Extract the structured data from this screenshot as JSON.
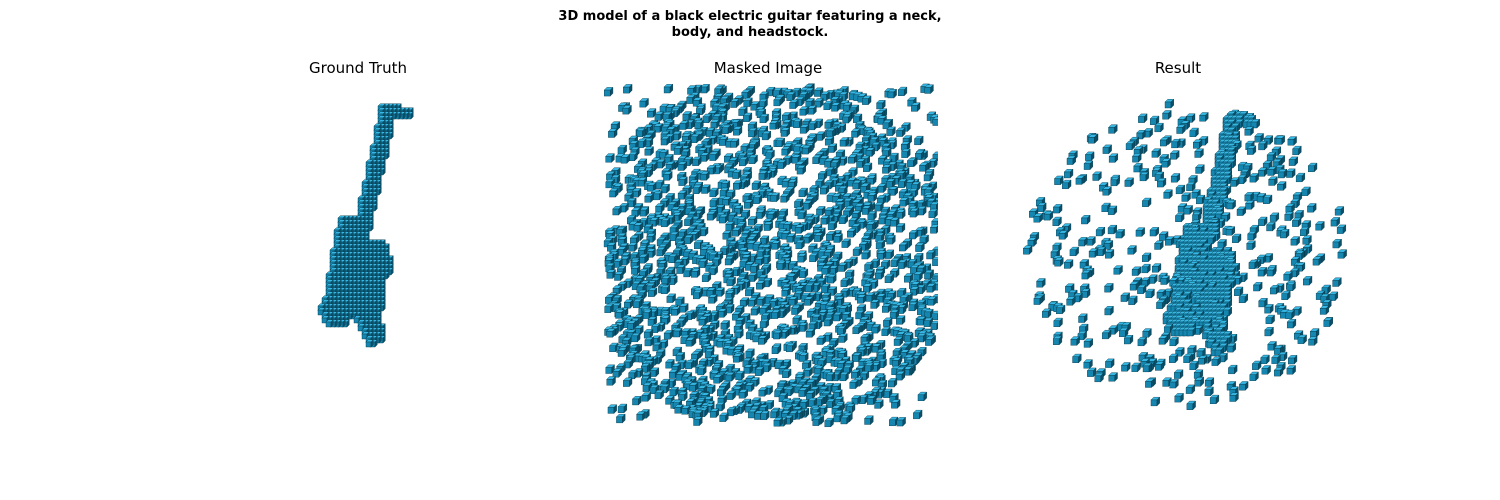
{
  "figure": {
    "title_line1": "3D model of a black electric guitar featuring a neck,",
    "title_line2": "body, and headstock."
  },
  "panels": [
    {
      "title": "Ground Truth"
    },
    {
      "title": "Masked Image"
    },
    {
      "title": "Result"
    }
  ],
  "colors": {
    "voxel_top": "#35b6e3",
    "voxel_front": "#1586b0",
    "voxel_side": "#0b4f68",
    "voxel_edge": "#063849"
  }
}
